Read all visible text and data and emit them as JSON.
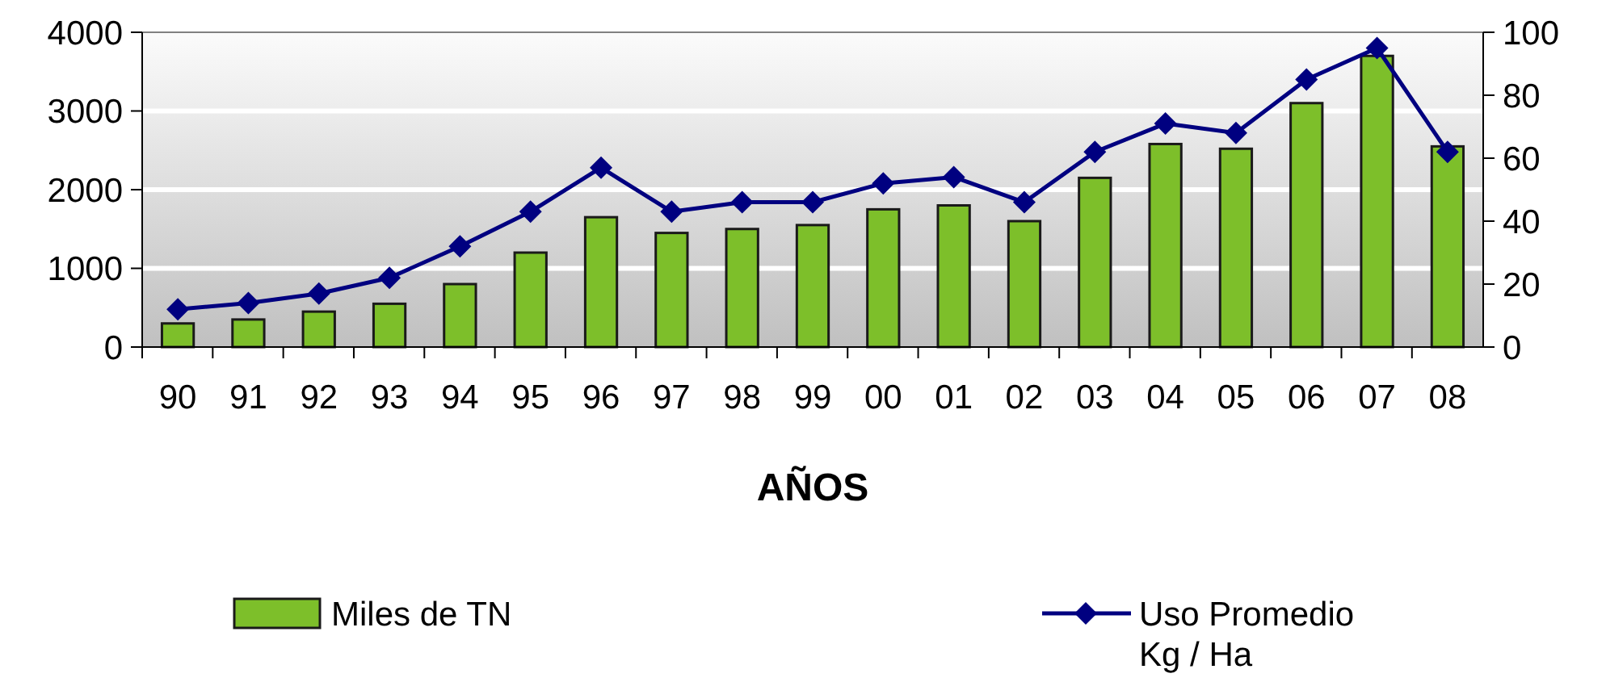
{
  "chart_data": {
    "type": "bar",
    "xlabel": "AÑOS",
    "categories": [
      "90",
      "91",
      "92",
      "93",
      "94",
      "95",
      "96",
      "97",
      "98",
      "99",
      "00",
      "01",
      "02",
      "03",
      "04",
      "05",
      "06",
      "07",
      "08"
    ],
    "series": [
      {
        "name": "Miles de TN",
        "color": "#7dbf2a",
        "values": [
          300,
          350,
          450,
          550,
          800,
          1200,
          1650,
          1450,
          1500,
          1550,
          1750,
          1800,
          1600,
          2150,
          2580,
          2520,
          3100,
          3700,
          2550
        ]
      },
      {
        "name": "Uso Promedio\nKg / Ha",
        "type": "line",
        "axis": "y2",
        "color": "#000080",
        "values": [
          12,
          14,
          17,
          22,
          32,
          43,
          57,
          43,
          46,
          46,
          52,
          54,
          46,
          62,
          71,
          68,
          85,
          95,
          62
        ]
      }
    ],
    "ylim": [
      0,
      4000
    ],
    "yticks": [
      0,
      1000,
      2000,
      3000,
      4000
    ],
    "y2lim": [
      0,
      100
    ],
    "y2ticks": [
      0,
      20,
      40,
      60,
      80,
      100
    ],
    "grid": "y",
    "legend": "bottom",
    "marker": "diamond",
    "line_style": "solid"
  }
}
